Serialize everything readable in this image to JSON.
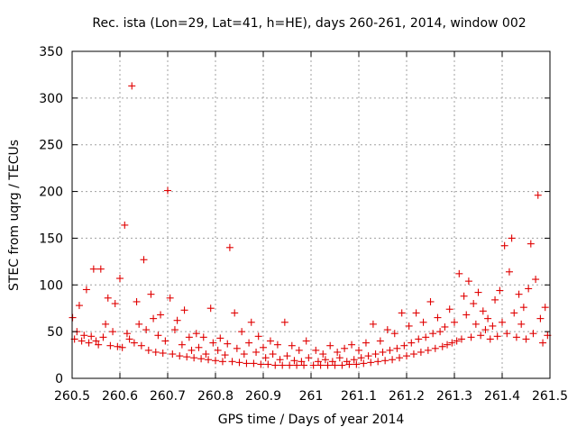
{
  "chart_data": {
    "type": "scatter",
    "title": "Rec. ista (Lon=29, Lat=41, h=HE), days 260-261, 2014, window 002",
    "xlabel": "GPS time / Days of year 2014",
    "ylabel": "STEC from uqrg / TECUs",
    "xlim": [
      260.5,
      261.5
    ],
    "ylim": [
      0,
      350
    ],
    "grid": true,
    "marker": "+",
    "colors": {
      "points": "#e00000",
      "grid": "#a0a0a0",
      "axis": "#000000"
    },
    "x_ticks": [
      "260.5",
      "260.6",
      "260.7",
      "260.8",
      "260.9",
      "261",
      "261.1",
      "261.2",
      "261.3",
      "261.4",
      "261.5"
    ],
    "y_ticks": [
      "0",
      "50",
      "100",
      "150",
      "200",
      "250",
      "300",
      "350"
    ],
    "x_tick_values": [
      260.5,
      260.6,
      260.7,
      260.8,
      260.9,
      261.0,
      261.1,
      261.2,
      261.3,
      261.4,
      261.5
    ],
    "y_tick_values": [
      0,
      50,
      100,
      150,
      200,
      250,
      300,
      350
    ],
    "points": [
      [
        260.501,
        65
      ],
      [
        260.505,
        42
      ],
      [
        260.51,
        50
      ],
      [
        260.515,
        78
      ],
      [
        260.52,
        40
      ],
      [
        260.525,
        46
      ],
      [
        260.53,
        95
      ],
      [
        260.535,
        38
      ],
      [
        260.54,
        45
      ],
      [
        260.545,
        117
      ],
      [
        260.55,
        40
      ],
      [
        260.555,
        36
      ],
      [
        260.56,
        117
      ],
      [
        260.565,
        44
      ],
      [
        260.57,
        58
      ],
      [
        260.575,
        86
      ],
      [
        260.58,
        35
      ],
      [
        260.585,
        50
      ],
      [
        260.59,
        80
      ],
      [
        260.595,
        34
      ],
      [
        260.6,
        107
      ],
      [
        260.605,
        33
      ],
      [
        260.61,
        164
      ],
      [
        260.615,
        48
      ],
      [
        260.62,
        42
      ],
      [
        260.625,
        313
      ],
      [
        260.63,
        38
      ],
      [
        260.635,
        82
      ],
      [
        260.64,
        58
      ],
      [
        260.645,
        35
      ],
      [
        260.65,
        127
      ],
      [
        260.655,
        52
      ],
      [
        260.66,
        30
      ],
      [
        260.665,
        90
      ],
      [
        260.67,
        64
      ],
      [
        260.675,
        28
      ],
      [
        260.68,
        46
      ],
      [
        260.685,
        68
      ],
      [
        260.69,
        27
      ],
      [
        260.695,
        40
      ],
      [
        260.7,
        201
      ],
      [
        260.705,
        86
      ],
      [
        260.71,
        26
      ],
      [
        260.715,
        52
      ],
      [
        260.72,
        62
      ],
      [
        260.725,
        24
      ],
      [
        260.73,
        36
      ],
      [
        260.735,
        73
      ],
      [
        260.74,
        23
      ],
      [
        260.745,
        44
      ],
      [
        260.75,
        30
      ],
      [
        260.755,
        22
      ],
      [
        260.76,
        48
      ],
      [
        260.765,
        33
      ],
      [
        260.77,
        21
      ],
      [
        260.775,
        44
      ],
      [
        260.78,
        26
      ],
      [
        260.785,
        20
      ],
      [
        260.79,
        75
      ],
      [
        260.795,
        38
      ],
      [
        260.8,
        19
      ],
      [
        260.805,
        30
      ],
      [
        260.81,
        43
      ],
      [
        260.815,
        18
      ],
      [
        260.82,
        25
      ],
      [
        260.825,
        37
      ],
      [
        260.83,
        140
      ],
      [
        260.835,
        18
      ],
      [
        260.84,
        70
      ],
      [
        260.845,
        32
      ],
      [
        260.85,
        17
      ],
      [
        260.855,
        50
      ],
      [
        260.86,
        26
      ],
      [
        260.865,
        16
      ],
      [
        260.87,
        38
      ],
      [
        260.875,
        60
      ],
      [
        260.88,
        16
      ],
      [
        260.885,
        28
      ],
      [
        260.89,
        45
      ],
      [
        260.895,
        15
      ],
      [
        260.9,
        33
      ],
      [
        260.905,
        22
      ],
      [
        260.91,
        15
      ],
      [
        260.915,
        40
      ],
      [
        260.92,
        26
      ],
      [
        260.925,
        14
      ],
      [
        260.93,
        36
      ],
      [
        260.935,
        20
      ],
      [
        260.94,
        14
      ],
      [
        260.945,
        60
      ],
      [
        260.95,
        24
      ],
      [
        260.955,
        14
      ],
      [
        260.96,
        35
      ],
      [
        260.965,
        19
      ],
      [
        260.97,
        14
      ],
      [
        260.975,
        30
      ],
      [
        260.98,
        18
      ],
      [
        260.985,
        14
      ],
      [
        260.99,
        40
      ],
      [
        260.995,
        22
      ],
      [
        261.005,
        14
      ],
      [
        261.01,
        30
      ],
      [
        261.015,
        18
      ],
      [
        261.02,
        14
      ],
      [
        261.025,
        26
      ],
      [
        261.03,
        20
      ],
      [
        261.035,
        14
      ],
      [
        261.04,
        35
      ],
      [
        261.045,
        18
      ],
      [
        261.05,
        14
      ],
      [
        261.055,
        28
      ],
      [
        261.06,
        22
      ],
      [
        261.065,
        14
      ],
      [
        261.07,
        32
      ],
      [
        261.075,
        18
      ],
      [
        261.08,
        15
      ],
      [
        261.085,
        36
      ],
      [
        261.09,
        20
      ],
      [
        261.095,
        15
      ],
      [
        261.1,
        30
      ],
      [
        261.105,
        22
      ],
      [
        261.11,
        16
      ],
      [
        261.115,
        38
      ],
      [
        261.12,
        24
      ],
      [
        261.125,
        17
      ],
      [
        261.13,
        58
      ],
      [
        261.135,
        26
      ],
      [
        261.14,
        18
      ],
      [
        261.145,
        40
      ],
      [
        261.15,
        28
      ],
      [
        261.155,
        19
      ],
      [
        261.16,
        52
      ],
      [
        261.165,
        30
      ],
      [
        261.17,
        20
      ],
      [
        261.175,
        48
      ],
      [
        261.18,
        32
      ],
      [
        261.185,
        22
      ],
      [
        261.19,
        70
      ],
      [
        261.195,
        35
      ],
      [
        261.2,
        24
      ],
      [
        261.205,
        56
      ],
      [
        261.21,
        38
      ],
      [
        261.215,
        26
      ],
      [
        261.22,
        70
      ],
      [
        261.225,
        42
      ],
      [
        261.23,
        28
      ],
      [
        261.235,
        60
      ],
      [
        261.24,
        44
      ],
      [
        261.245,
        30
      ],
      [
        261.25,
        82
      ],
      [
        261.255,
        48
      ],
      [
        261.26,
        32
      ],
      [
        261.265,
        65
      ],
      [
        261.27,
        50
      ],
      [
        261.275,
        34
      ],
      [
        261.28,
        55
      ],
      [
        261.285,
        36
      ],
      [
        261.29,
        74
      ],
      [
        261.295,
        38
      ],
      [
        261.3,
        60
      ],
      [
        261.305,
        40
      ],
      [
        261.31,
        112
      ],
      [
        261.315,
        42
      ],
      [
        261.32,
        88
      ],
      [
        261.325,
        68
      ],
      [
        261.33,
        104
      ],
      [
        261.335,
        44
      ],
      [
        261.34,
        80
      ],
      [
        261.345,
        58
      ],
      [
        261.35,
        92
      ],
      [
        261.355,
        46
      ],
      [
        261.36,
        72
      ],
      [
        261.365,
        52
      ],
      [
        261.37,
        64
      ],
      [
        261.375,
        42
      ],
      [
        261.38,
        56
      ],
      [
        261.385,
        84
      ],
      [
        261.39,
        45
      ],
      [
        261.395,
        94
      ],
      [
        261.4,
        60
      ],
      [
        261.405,
        142
      ],
      [
        261.41,
        48
      ],
      [
        261.415,
        114
      ],
      [
        261.42,
        150
      ],
      [
        261.425,
        70
      ],
      [
        261.43,
        44
      ],
      [
        261.435,
        90
      ],
      [
        261.44,
        58
      ],
      [
        261.445,
        76
      ],
      [
        261.45,
        42
      ],
      [
        261.455,
        96
      ],
      [
        261.46,
        144
      ],
      [
        261.465,
        48
      ],
      [
        261.47,
        106
      ],
      [
        261.475,
        196
      ],
      [
        261.48,
        64
      ],
      [
        261.485,
        38
      ],
      [
        261.49,
        76
      ],
      [
        261.495,
        46
      ]
    ]
  }
}
